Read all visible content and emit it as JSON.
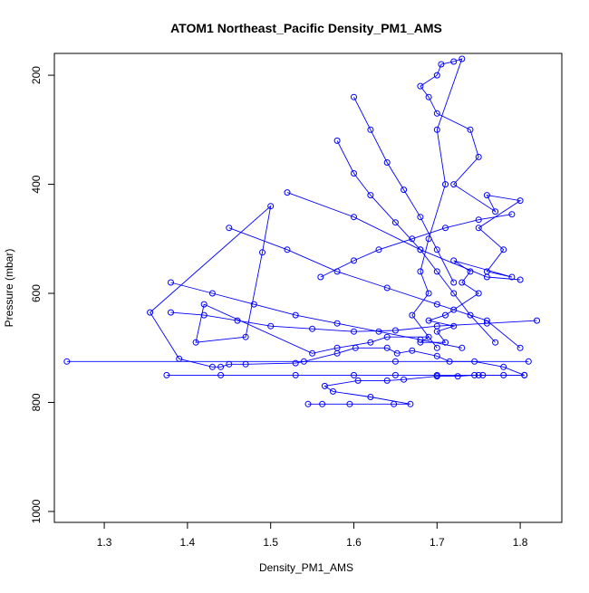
{
  "chart_data": {
    "type": "line",
    "title": "ATOM1 Northeast_Pacific Density_PM1_AMS",
    "xlabel": "Density_PM1_AMS",
    "ylabel": "Pressure (mbar)",
    "xlim": [
      1.24,
      1.85
    ],
    "ylim": [
      1020,
      160
    ],
    "y_reversed": true,
    "xticks": [
      1.3,
      1.4,
      1.5,
      1.6,
      1.7,
      1.8
    ],
    "xtick_labels": [
      "1.3",
      "1.4",
      "1.5",
      "1.6",
      "1.7",
      "1.8"
    ],
    "yticks": [
      200,
      400,
      600,
      800,
      1000
    ],
    "ytick_labels": [
      "200",
      "400",
      "600",
      "800",
      "1000"
    ],
    "grid": false,
    "marker": "open-circle",
    "color": "#0000ff",
    "series": [
      {
        "x": [
          1.545,
          1.562,
          1.595,
          1.648,
          1.668,
          1.62,
          1.575,
          1.565,
          1.605,
          1.64,
          1.66,
          1.7,
          1.725,
          1.745,
          1.755,
          1.78,
          1.805,
          1.78,
          1.745,
          1.715,
          1.7,
          1.67,
          1.652,
          1.64,
          1.602,
          1.58,
          1.54,
          1.53,
          1.47,
          1.45,
          1.44,
          1.43,
          1.39,
          1.355,
          1.5,
          1.49,
          1.47,
          1.41,
          1.42,
          1.55,
          1.58,
          1.62,
          1.64,
          1.69,
          1.68,
          1.71,
          1.7,
          1.72,
          1.69,
          1.71,
          1.72,
          1.75,
          1.73,
          1.74,
          1.72,
          1.79,
          1.76,
          1.78,
          1.75,
          1.8,
          1.76,
          1.77,
          1.72,
          1.75,
          1.74,
          1.7,
          1.69,
          1.68,
          1.7,
          1.705,
          1.72,
          1.73,
          1.7,
          1.71,
          1.69,
          1.68,
          1.69,
          1.67,
          1.7
        ],
        "y": [
          803,
          803,
          803,
          803,
          803,
          790,
          780,
          770,
          760,
          760,
          758,
          752,
          752,
          750,
          750,
          750,
          750,
          735,
          725,
          725,
          715,
          705,
          710,
          700,
          700,
          710,
          725,
          728,
          730,
          730,
          735,
          735,
          720,
          635,
          440,
          525,
          680,
          690,
          620,
          710,
          700,
          690,
          680,
          680,
          690,
          690,
          670,
          660,
          650,
          640,
          630,
          600,
          580,
          560,
          540,
          570,
          560,
          520,
          480,
          430,
          420,
          450,
          400,
          350,
          300,
          270,
          240,
          220,
          200,
          180,
          175,
          170,
          300,
          400,
          500,
          560,
          600,
          640,
          700
        ]
      },
      {
        "x": [
          1.255,
          1.65,
          1.81
        ],
        "y": [
          725,
          725,
          725
        ]
      },
      {
        "x": [
          1.375,
          1.44,
          1.53,
          1.6,
          1.65,
          1.7,
          1.75,
          1.805
        ],
        "y": [
          750,
          750,
          750,
          750,
          750,
          750,
          750,
          750
        ]
      },
      {
        "x": [
          1.38,
          1.42,
          1.46,
          1.5,
          1.55,
          1.6,
          1.65,
          1.7,
          1.76,
          1.82
        ],
        "y": [
          635,
          640,
          650,
          660,
          665,
          670,
          668,
          660,
          655,
          650
        ]
      },
      {
        "x": [
          1.52,
          1.6,
          1.68,
          1.76,
          1.8
        ],
        "y": [
          415,
          460,
          520,
          570,
          575
        ]
      },
      {
        "x": [
          1.56,
          1.6,
          1.63,
          1.67,
          1.71,
          1.75,
          1.79
        ],
        "y": [
          570,
          540,
          520,
          500,
          480,
          465,
          455
        ]
      },
      {
        "x": [
          1.38,
          1.43,
          1.48,
          1.53,
          1.58,
          1.63,
          1.68,
          1.73
        ],
        "y": [
          580,
          600,
          620,
          640,
          655,
          670,
          685,
          700
        ]
      },
      {
        "x": [
          1.45,
          1.52,
          1.58,
          1.64,
          1.7,
          1.76,
          1.8
        ],
        "y": [
          480,
          520,
          560,
          590,
          620,
          650,
          700
        ]
      },
      {
        "x": [
          1.58,
          1.6,
          1.62,
          1.65,
          1.68,
          1.7,
          1.72,
          1.74,
          1.77
        ],
        "y": [
          320,
          380,
          420,
          470,
          520,
          560,
          600,
          640,
          690
        ]
      },
      {
        "x": [
          1.6,
          1.62,
          1.64,
          1.66,
          1.68,
          1.7,
          1.72
        ],
        "y": [
          240,
          300,
          360,
          410,
          460,
          520,
          580
        ]
      }
    ]
  }
}
